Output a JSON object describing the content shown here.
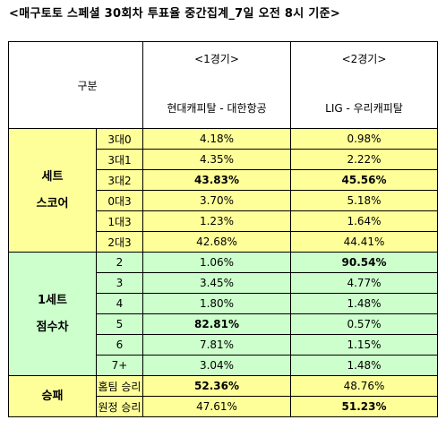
{
  "title": "<매구토토 스페셜 30회차 투표율 중간집계_7일 오전 8시 기준>",
  "header": {
    "gubun": "구분",
    "game1_no": "<1경기>",
    "game1_teams": "현대캐피탈 - 대한항공",
    "game2_no": "<2경기>",
    "game2_teams": "LIG - 우리캐피탈"
  },
  "colors": {
    "set_score_bg": "#ffff99",
    "point_diff_bg": "#ccffcc",
    "win_lose_bg": "#ffff99"
  },
  "sections": {
    "set_score": {
      "label_line1": "세트",
      "label_line2": "스코어",
      "rows": [
        {
          "label": "3대0",
          "g1": "4.18%",
          "g2": "0.98%"
        },
        {
          "label": "3대1",
          "g1": "4.35%",
          "g2": "2.22%"
        },
        {
          "label": "3대2",
          "g1": "43.83%",
          "g2": "45.56%"
        },
        {
          "label": "0대3",
          "g1": "3.70%",
          "g2": "5.18%"
        },
        {
          "label": "1대3",
          "g1": "1.23%",
          "g2": "1.64%"
        },
        {
          "label": "2대3",
          "g1": "42.68%",
          "g2": "44.41%"
        }
      ]
    },
    "point_diff": {
      "label_line1": "1세트",
      "label_line2": "점수차",
      "rows": [
        {
          "label": "2",
          "g1": "1.06%",
          "g2": "90.54%"
        },
        {
          "label": "3",
          "g1": "3.45%",
          "g2": "4.77%"
        },
        {
          "label": "4",
          "g1": "1.80%",
          "g2": "1.48%"
        },
        {
          "label": "5",
          "g1": "82.81%",
          "g2": "0.57%"
        },
        {
          "label": "6",
          "g1": "7.81%",
          "g2": "1.15%"
        },
        {
          "label": "7+",
          "g1": "3.04%",
          "g2": "1.48%"
        }
      ]
    },
    "win_lose": {
      "label": "승패",
      "rows": [
        {
          "label": "홈팀 승리",
          "g1": "52.36%",
          "g2": "48.76%"
        },
        {
          "label": "원정 승리",
          "g1": "47.61%",
          "g2": "51.23%"
        }
      ]
    }
  }
}
